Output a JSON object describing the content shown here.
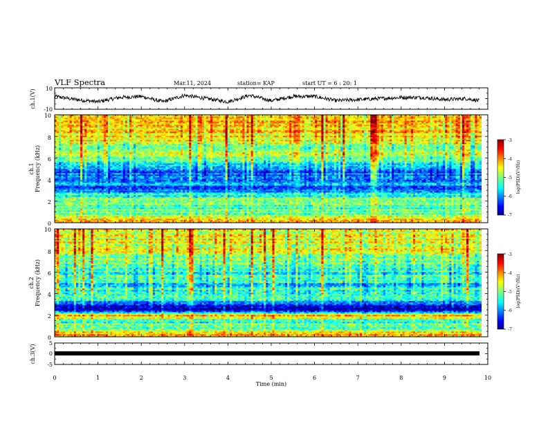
{
  "header": {
    "title": "VLF Spectra",
    "date": "Mar.11, 2024",
    "station": "station= KAP",
    "start_time": "start UT =  6 : 20: 1"
  },
  "panels": {
    "ch1_wave": {
      "ylabel": "ch.1(V)",
      "yticks": [
        "10",
        "-10"
      ]
    },
    "ch1_spec": {
      "ylabel_line1": "ch.1",
      "ylabel_line2": "Frequency (kHz)",
      "yticks": [
        "10",
        "8",
        "6",
        "4",
        "2",
        "0"
      ]
    },
    "ch2_spec": {
      "ylabel_line1": "ch.2",
      "ylabel_line2": "Frequency (kHz)",
      "yticks": [
        "10",
        "8",
        "6",
        "4",
        "2",
        "0"
      ]
    },
    "ch3_wave": {
      "ylabel": "ch.3(V)",
      "yticks": [
        "5",
        "0",
        "-5"
      ]
    }
  },
  "xaxis": {
    "label": "Time (min)",
    "ticks": [
      "0",
      "1",
      "2",
      "3",
      "4",
      "5",
      "6",
      "7",
      "8",
      "9",
      "10"
    ]
  },
  "colorbars": [
    {
      "ticks": [
        "-3",
        "-4",
        "-5",
        "-6",
        "-7"
      ],
      "label": "log(PSD)(V²/Hz)"
    },
    {
      "ticks": [
        "-3",
        "-4",
        "-5",
        "-6",
        "-7"
      ],
      "label": "log(PSD)(V²/Hz)"
    }
  ],
  "colors": {
    "line": "#000000",
    "jet_low": "#00008f",
    "jet_mid": "#7fff7f",
    "jet_high": "#800000"
  },
  "chart_data": [
    {
      "type": "line",
      "title": "VLF Spectra",
      "ylabel": "ch.1(V)",
      "xlabel": "Time (min)",
      "xlim": [
        0,
        10
      ],
      "ylim": [
        -10,
        10
      ],
      "series": [
        {
          "x": [
            0,
            0.5,
            1,
            1.5,
            2,
            2.5,
            3,
            3.5,
            4,
            4.5,
            5,
            5.5,
            6,
            6.5,
            7,
            7.5,
            8,
            8.5,
            9,
            9.5,
            9.8
          ],
          "values": [
            2,
            -1,
            -3,
            1,
            2,
            -3,
            3,
            0,
            -3,
            3,
            -2,
            2,
            2,
            -2,
            -1,
            0,
            1,
            1,
            -1,
            0,
            -2
          ]
        }
      ]
    },
    {
      "type": "heatmap",
      "ylabel": "ch.1 Frequency (kHz)",
      "xlabel": "Time (min)",
      "xlim": [
        0,
        9.85
      ],
      "ylim": [
        0,
        10
      ],
      "colorbar_range": [
        -7,
        -3
      ],
      "colorbar_label": "log(PSD)(V²/Hz)",
      "frequency_kHz": [
        0.2,
        0.8,
        1.5,
        2.2,
        3.0,
        3.5,
        4.2,
        4.8,
        5.5,
        6.2,
        7.0,
        7.8,
        8.5,
        9.2,
        9.8
      ],
      "log_psd": [
        -4.0,
        -5.0,
        -5.2,
        -4.8,
        -6.2,
        -6.0,
        -5.8,
        -6.3,
        -5.5,
        -4.8,
        -5.0,
        -4.5,
        -4.3,
        -4.4,
        -4.3
      ]
    },
    {
      "type": "heatmap",
      "ylabel": "ch.2 Frequency (kHz)",
      "xlabel": "Time (min)",
      "xlim": [
        0,
        9.85
      ],
      "ylim": [
        0,
        10
      ],
      "colorbar_range": [
        -7,
        -3
      ],
      "colorbar_label": "log(PSD)(V²/Hz)",
      "frequency_kHz": [
        0.2,
        0.8,
        1.5,
        2.0,
        2.5,
        3.0,
        3.5,
        4.2,
        4.8,
        5.5,
        6.2,
        7.0,
        7.8,
        8.5,
        9.2,
        9.8
      ],
      "log_psd": [
        -4.2,
        -5.0,
        -5.3,
        -4.2,
        -6.5,
        -6.5,
        -5.5,
        -5.3,
        -5.6,
        -5.2,
        -5.4,
        -5.0,
        -4.6,
        -4.6,
        -4.5,
        -4.5
      ]
    },
    {
      "type": "line",
      "ylabel": "ch.3(V)",
      "xlabel": "Time (min)",
      "xlim": [
        0,
        10
      ],
      "ylim": [
        -5,
        5
      ],
      "series": [
        {
          "x": [
            0,
            9.85
          ],
          "values": [
            0,
            0
          ]
        }
      ]
    }
  ]
}
